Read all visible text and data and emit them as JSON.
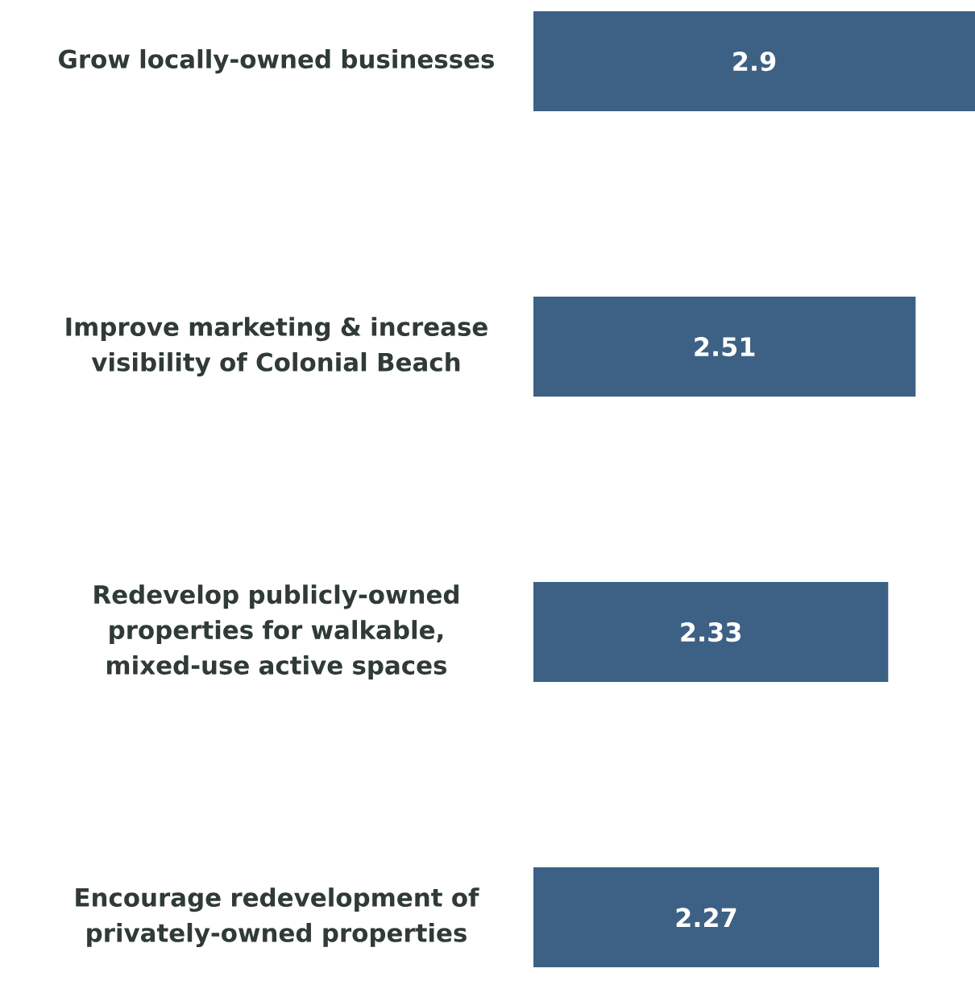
{
  "chart_data": {
    "type": "bar",
    "orientation": "horizontal",
    "categories": [
      "Grow locally-owned businesses",
      "Improve marketing & increase visibility of Colonial Beach",
      "Redevelop publicly-owned properties for walkable, mixed-use active spaces",
      "Encourage redevelopment of privately-owned properties"
    ],
    "values": [
      2.9,
      2.51,
      2.33,
      2.27
    ],
    "color": "#3d6085",
    "data_labels": true
  }
}
